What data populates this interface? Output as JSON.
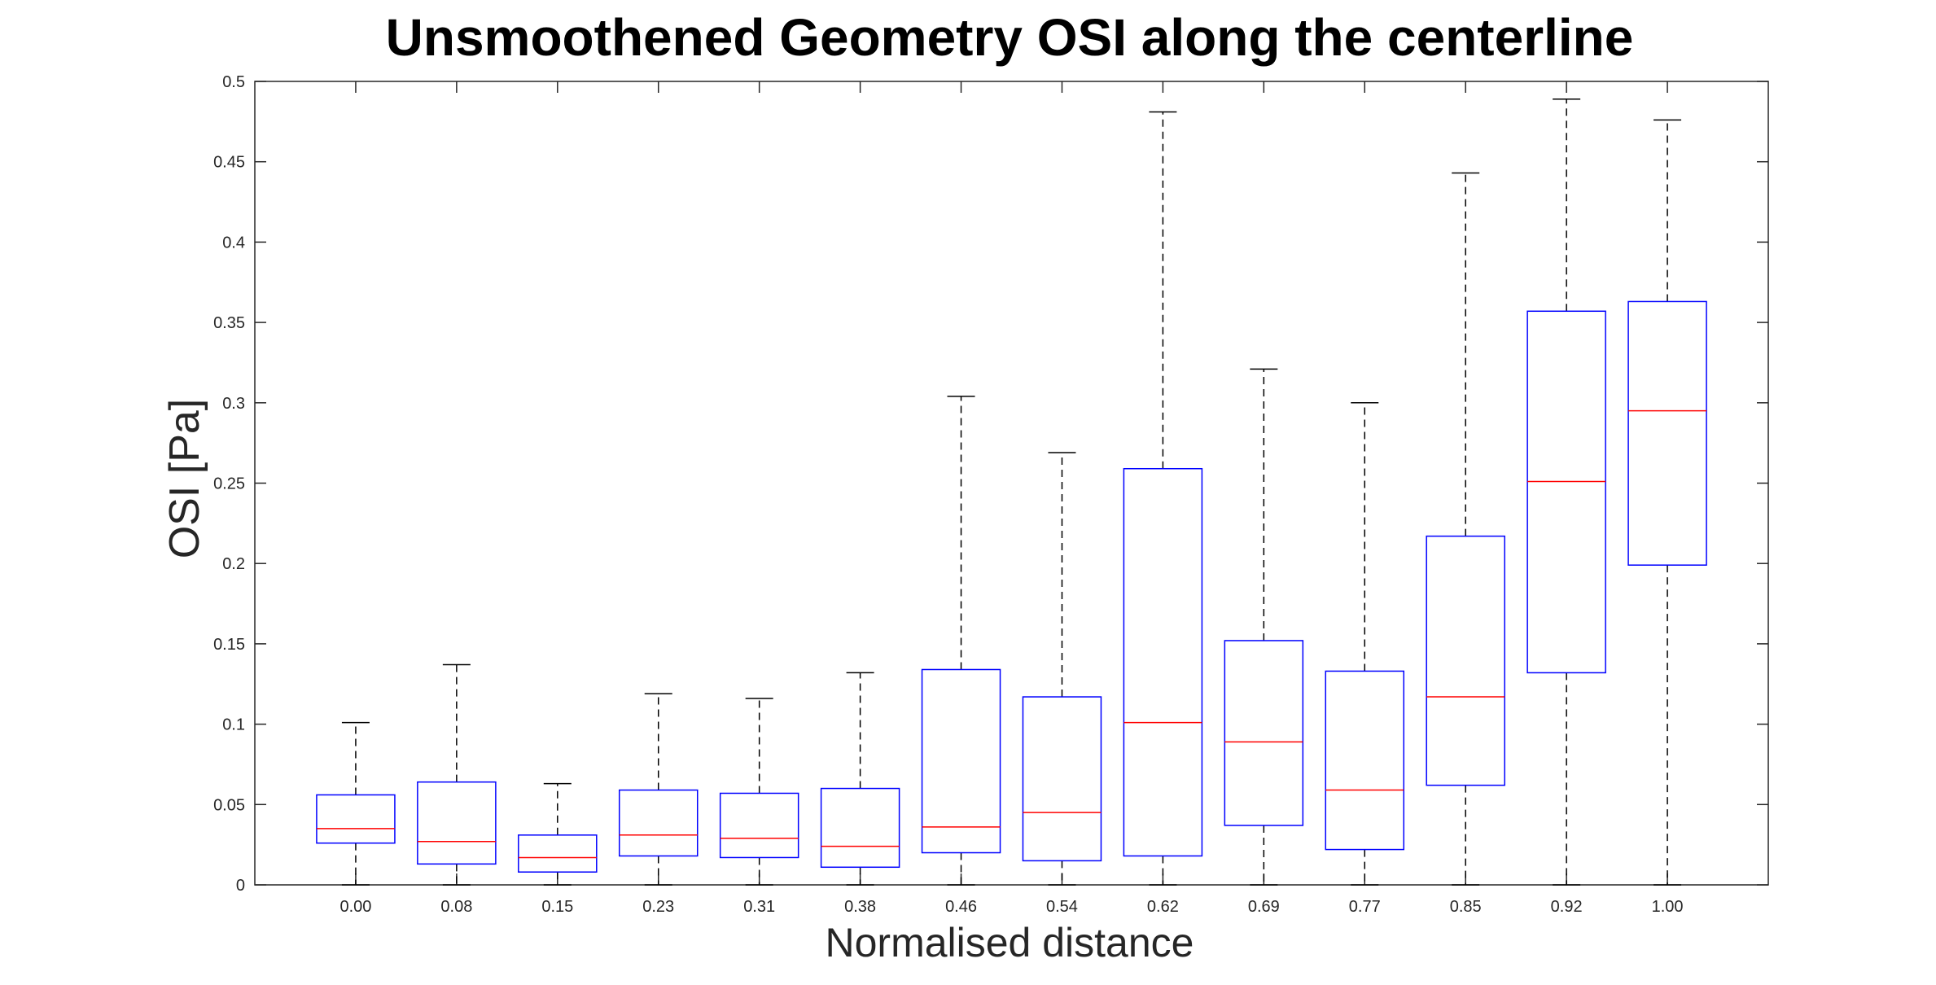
{
  "chart_data": {
    "type": "box",
    "title": "Unsmoothened Geometry OSI along the centerline",
    "xlabel": "Normalised distance",
    "ylabel": "OSI [Pa]",
    "ylim": [
      0,
      0.5
    ],
    "yticks": [
      0,
      0.05,
      0.1,
      0.15,
      0.2,
      0.25,
      0.3,
      0.35,
      0.4,
      0.45,
      0.5
    ],
    "ytick_labels": [
      "0",
      "0.05",
      "0.1",
      "0.15",
      "0.2",
      "0.25",
      "0.3",
      "0.35",
      "0.4",
      "0.45",
      "0.5"
    ],
    "categories": [
      "0.00",
      "0.08",
      "0.15",
      "0.23",
      "0.31",
      "0.38",
      "0.46",
      "0.54",
      "0.62",
      "0.69",
      "0.77",
      "0.85",
      "0.92",
      "1.00"
    ],
    "boxes": [
      {
        "whisker_low": 0,
        "q1": 0.026,
        "median": 0.035,
        "q3": 0.056,
        "whisker_high": 0.101
      },
      {
        "whisker_low": 0,
        "q1": 0.013,
        "median": 0.027,
        "q3": 0.064,
        "whisker_high": 0.137
      },
      {
        "whisker_low": 0,
        "q1": 0.008,
        "median": 0.017,
        "q3": 0.031,
        "whisker_high": 0.063
      },
      {
        "whisker_low": 0,
        "q1": 0.018,
        "median": 0.031,
        "q3": 0.059,
        "whisker_high": 0.119
      },
      {
        "whisker_low": 0,
        "q1": 0.017,
        "median": 0.029,
        "q3": 0.057,
        "whisker_high": 0.116
      },
      {
        "whisker_low": 0,
        "q1": 0.011,
        "median": 0.024,
        "q3": 0.06,
        "whisker_high": 0.132
      },
      {
        "whisker_low": 0,
        "q1": 0.02,
        "median": 0.036,
        "q3": 0.134,
        "whisker_high": 0.304
      },
      {
        "whisker_low": 0,
        "q1": 0.015,
        "median": 0.045,
        "q3": 0.117,
        "whisker_high": 0.269
      },
      {
        "whisker_low": 0,
        "q1": 0.018,
        "median": 0.101,
        "q3": 0.259,
        "whisker_high": 0.481
      },
      {
        "whisker_low": 0,
        "q1": 0.037,
        "median": 0.089,
        "q3": 0.152,
        "whisker_high": 0.321
      },
      {
        "whisker_low": 0,
        "q1": 0.022,
        "median": 0.059,
        "q3": 0.133,
        "whisker_high": 0.3
      },
      {
        "whisker_low": 0,
        "q1": 0.062,
        "median": 0.117,
        "q3": 0.217,
        "whisker_high": 0.443
      },
      {
        "whisker_low": 0,
        "q1": 0.132,
        "median": 0.251,
        "q3": 0.357,
        "whisker_high": 0.489
      },
      {
        "whisker_low": 0,
        "q1": 0.199,
        "median": 0.295,
        "q3": 0.363,
        "whisker_high": 0.476
      }
    ],
    "grid": false,
    "colors": {
      "box": "#0000ff",
      "median": "#ff0000",
      "whisker": "#000000",
      "axes": "#262626",
      "text": "#000000"
    }
  }
}
